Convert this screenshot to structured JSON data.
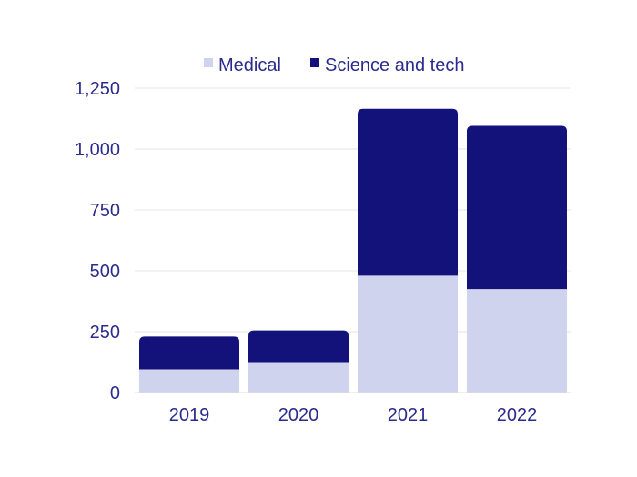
{
  "chart_data": {
    "type": "bar",
    "stacked": true,
    "categories": [
      "2019",
      "2020",
      "2021",
      "2022"
    ],
    "series": [
      {
        "name": "Medical",
        "values": [
          95,
          125,
          480,
          425
        ],
        "color": "#cfd3ee"
      },
      {
        "name": "Science and tech",
        "values": [
          135,
          130,
          685,
          670
        ],
        "color": "#12127a"
      }
    ],
    "ylim": [
      0,
      1250
    ],
    "yticks": [
      "0",
      "250",
      "500",
      "750",
      "1,000",
      "1,250"
    ],
    "ytick_values": [
      0,
      250,
      500,
      750,
      1000,
      1250
    ],
    "grid": true,
    "legend": "top",
    "title": "",
    "xlabel": "",
    "ylabel": ""
  },
  "colors": {
    "text": "#2b2b8f",
    "grid": "#e6e6e6"
  }
}
